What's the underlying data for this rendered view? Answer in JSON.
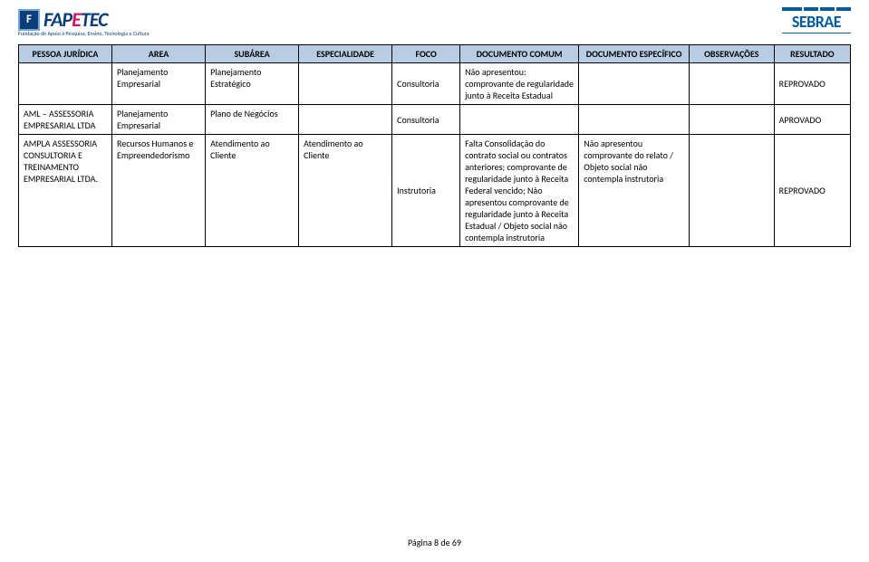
{
  "logos": {
    "fapetec": "FAPETEC",
    "fapetec_sub": "Fundação de Apoio à Pesquisa, Ensino, Tecnologia e Cultura",
    "sebrae": "SEBRAE"
  },
  "headers": {
    "pj": "PESSOA JURÍDICA",
    "area": "AREA",
    "subarea": "SUBÁREA",
    "especialidade": "ESPECIALIDADE",
    "foco": "FOCO",
    "doc_comum": "DOCUMENTO COMUM",
    "doc_espec": "DOCUMENTO ESPECÍFICO",
    "obs": "OBSERVAÇÕES",
    "resultado": "RESULTADO"
  },
  "rows": [
    {
      "pj": "",
      "area": "Planejamento Empresarial",
      "subarea": "Planejamento Estratégico",
      "esp": "",
      "foco": "Consultoria",
      "comum": "Não apresentou: comprovante de regularidade junto à Receita Estadual",
      "espec": "",
      "obs": "",
      "res": "REPROVADO"
    },
    {
      "pj": "AML – ASSESSORIA EMPRESARIAL LTDA",
      "area": "Planejamento Empresarial",
      "subarea": "Plano de Negócios",
      "esp": "",
      "foco": "Consultoria",
      "comum": "",
      "espec": "",
      "obs": "",
      "res": "APROVADO"
    },
    {
      "pj": "AMPLA ASSESSORIA CONSULTORIA E TREINAMENTO EMPRESARIAL LTDA.",
      "area": "Recursos Humanos e Empreendedorismo",
      "subarea": "Atendimento ao Cliente",
      "esp": "Atendimento ao Cliente",
      "foco": "Instrutoria",
      "comum": "Falta Consolidação do contrato social ou contratos anteriores; comprovante de regularidade junto à Receita Federal vencido; Não apresentou comprovante de regularidade junto à Receita Estadual / Objeto social não contempla instrutoria",
      "espec": "Não apresentou comprovante do relato / Objeto social não contempla instrutoria",
      "obs": "",
      "res": "REPROVADO"
    }
  ],
  "footer": "Página 8 de 69",
  "colors": {
    "header_bg": "#b8cce4",
    "border": "#000000",
    "fapetec_blue": "#0a3d7a",
    "fapetec_pink": "#d4145a",
    "sebrae_blue": "#005b9f"
  }
}
